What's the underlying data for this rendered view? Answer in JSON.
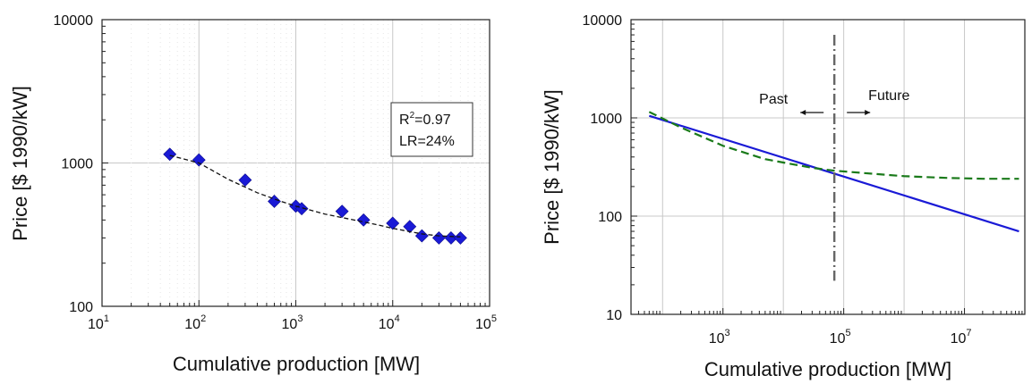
{
  "chart_data": [
    {
      "type": "scatter",
      "xscale": "log",
      "yscale": "log",
      "xlabel": "Cumulative production [MW]",
      "ylabel": "Price [$ 1990/kW]",
      "xlim": [
        10,
        100000
      ],
      "ylim": [
        100,
        10000
      ],
      "xticks": [
        {
          "value": 10,
          "base": "10",
          "exp": "1"
        },
        {
          "value": 100,
          "base": "10",
          "exp": "2"
        },
        {
          "value": 1000,
          "base": "10",
          "exp": "3"
        },
        {
          "value": 10000,
          "base": "10",
          "exp": "4"
        },
        {
          "value": 100000,
          "base": "10",
          "exp": "5"
        }
      ],
      "yticks": [
        {
          "value": 100,
          "label": "100"
        },
        {
          "value": 1000,
          "label": "1000"
        },
        {
          "value": 10000,
          "label": "10000"
        }
      ],
      "grid": true,
      "series": [
        {
          "kind": "points",
          "color": "#1a1ad6",
          "marker": "diamond",
          "x": [
            50,
            100,
            300,
            600,
            1000,
            1150,
            3000,
            5000,
            10000,
            15000,
            20000,
            30000,
            40000,
            50000
          ],
          "y": [
            1150,
            1050,
            760,
            540,
            500,
            480,
            460,
            400,
            380,
            360,
            310,
            300,
            300,
            300
          ]
        },
        {
          "kind": "fit",
          "color": "#111111",
          "style": "dashed",
          "x": [
            50,
            100,
            200,
            400,
            700,
            1000,
            2000,
            4000,
            7000,
            10000,
            20000,
            30000,
            50000
          ],
          "y": [
            1130,
            1000,
            770,
            620,
            540,
            500,
            440,
            400,
            370,
            350,
            320,
            310,
            305
          ]
        }
      ],
      "legend_box": {
        "r2_base": "R",
        "r2_sup": "2",
        "r2_value": "=0.97",
        "lr": "LR=24%",
        "placement": "upper-right"
      }
    },
    {
      "type": "line",
      "xscale": "log",
      "yscale": "log",
      "xlabel": "Cumulative production [MW]",
      "ylabel": "Price [$ 1990/kW]",
      "xlim": [
        30,
        100000000
      ],
      "ylim": [
        10,
        10000
      ],
      "xticks": [
        {
          "value": 1000,
          "base": "10",
          "exp": "3"
        },
        {
          "value": 100000,
          "base": "10",
          "exp": "5"
        },
        {
          "value": 10000000,
          "base": "10",
          "exp": "7"
        }
      ],
      "yticks": [
        {
          "value": 10,
          "label": "10"
        },
        {
          "value": 100,
          "label": "100"
        },
        {
          "value": 1000,
          "label": "1000"
        },
        {
          "value": 10000,
          "label": "10000"
        }
      ],
      "grid": true,
      "series": [
        {
          "kind": "line",
          "color": "#1a1ad6",
          "style": "solid",
          "x": [
            60,
            80000000
          ],
          "y": [
            1050,
            70
          ]
        },
        {
          "kind": "line",
          "color": "#1a7a1a",
          "style": "dashed",
          "x": [
            60,
            200,
            1000,
            5000,
            30000,
            70000,
            300000,
            1000000,
            5000000,
            20000000,
            80000000
          ],
          "y": [
            1150,
            800,
            520,
            380,
            310,
            290,
            270,
            255,
            245,
            240,
            240
          ]
        }
      ],
      "divider": {
        "x": 70000,
        "y_top": 7000,
        "y_bottom": 22
      },
      "annotations": {
        "past": "Past",
        "future": "Future"
      }
    }
  ]
}
